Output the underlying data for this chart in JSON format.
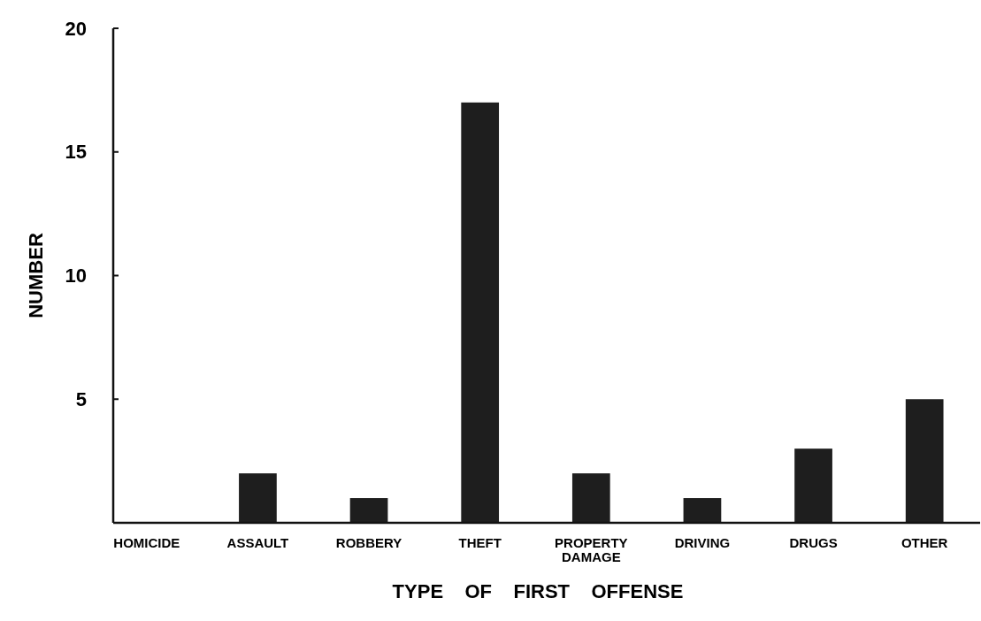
{
  "chart_data": {
    "type": "bar",
    "xlabel": "TYPE    OF    FIRST    OFFENSE",
    "ylabel": "NUMBER",
    "categories": [
      "HOMICIDE",
      "ASSAULT",
      "ROBBERY",
      "THEFT",
      "PROPERTY DAMAGE",
      "DRIVING",
      "DRUGS",
      "OTHER"
    ],
    "values": [
      0,
      2,
      1,
      17,
      2,
      1,
      3,
      5
    ],
    "color": "#1e1e1e",
    "ylim": [
      0,
      20
    ],
    "yticks": [
      5,
      10,
      15,
      20
    ]
  }
}
